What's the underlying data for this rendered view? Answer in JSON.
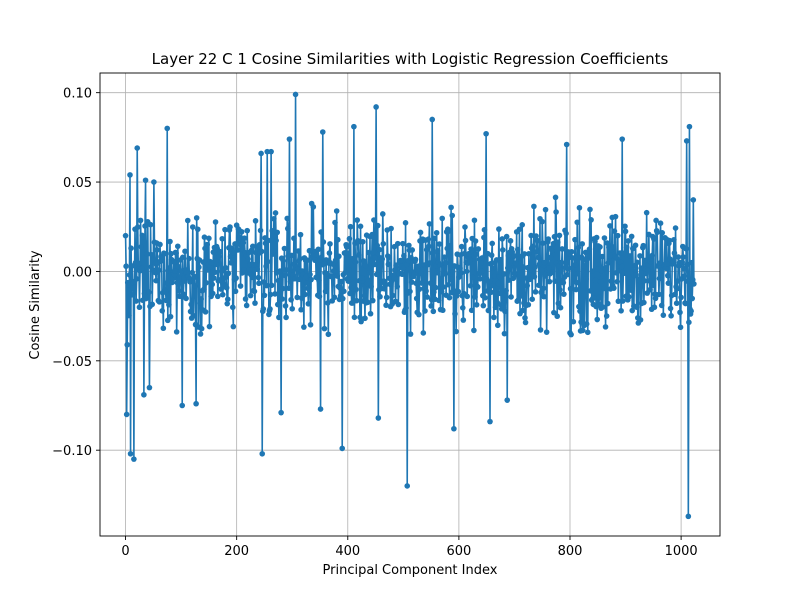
{
  "chart_data": {
    "type": "line",
    "title": "Layer 22 C 1 Cosine Similarities with Logistic Regression Coefficients",
    "xlabel": "Principal Component Index",
    "ylabel": "Cosine Similarity",
    "xlim": [
      -46,
      1070
    ],
    "ylim": [
      -0.148,
      0.111
    ],
    "xticks": [
      0,
      200,
      400,
      600,
      800,
      1000
    ],
    "xtick_labels": [
      "0",
      "200",
      "400",
      "600",
      "800",
      "1000"
    ],
    "yticks": [
      -0.1,
      -0.05,
      0.0,
      0.05,
      0.1
    ],
    "ytick_labels": [
      "−0.10",
      "−0.05",
      "0.00",
      "0.05",
      "0.10"
    ],
    "grid": true,
    "marker": "circle",
    "color": "#1f77b4",
    "series": [
      {
        "name": "",
        "x_start": 0,
        "x_step": 1,
        "count": 1024,
        "highlights": [
          {
            "x": 0,
            "y": 0.02
          },
          {
            "x": 2,
            "y": -0.08
          },
          {
            "x": 3,
            "y": -0.041
          },
          {
            "x": 8,
            "y": 0.054
          },
          {
            "x": 9,
            "y": -0.102
          },
          {
            "x": 15,
            "y": -0.105
          },
          {
            "x": 21,
            "y": 0.069
          },
          {
            "x": 33,
            "y": -0.069
          },
          {
            "x": 36,
            "y": 0.051
          },
          {
            "x": 43,
            "y": -0.065
          },
          {
            "x": 51,
            "y": 0.05
          },
          {
            "x": 75,
            "y": 0.08
          },
          {
            "x": 102,
            "y": -0.075
          },
          {
            "x": 127,
            "y": -0.074
          },
          {
            "x": 244,
            "y": 0.066
          },
          {
            "x": 246,
            "y": -0.102
          },
          {
            "x": 255,
            "y": 0.067
          },
          {
            "x": 262,
            "y": 0.067
          },
          {
            "x": 280,
            "y": -0.079
          },
          {
            "x": 295,
            "y": 0.074
          },
          {
            "x": 306,
            "y": 0.099
          },
          {
            "x": 351,
            "y": -0.077
          },
          {
            "x": 355,
            "y": 0.078
          },
          {
            "x": 390,
            "y": -0.099
          },
          {
            "x": 411,
            "y": 0.081
          },
          {
            "x": 451,
            "y": 0.092
          },
          {
            "x": 455,
            "y": -0.082
          },
          {
            "x": 507,
            "y": -0.12
          },
          {
            "x": 552,
            "y": 0.085
          },
          {
            "x": 591,
            "y": -0.088
          },
          {
            "x": 649,
            "y": 0.077
          },
          {
            "x": 656,
            "y": -0.084
          },
          {
            "x": 687,
            "y": -0.072
          },
          {
            "x": 794,
            "y": 0.071
          },
          {
            "x": 894,
            "y": 0.074
          },
          {
            "x": 1010,
            "y": 0.073
          },
          {
            "x": 1013,
            "y": -0.137
          },
          {
            "x": 1015,
            "y": 0.081
          },
          {
            "x": 1022,
            "y": 0.04
          }
        ],
        "typical_range": [
          -0.045,
          0.045
        ]
      }
    ]
  }
}
